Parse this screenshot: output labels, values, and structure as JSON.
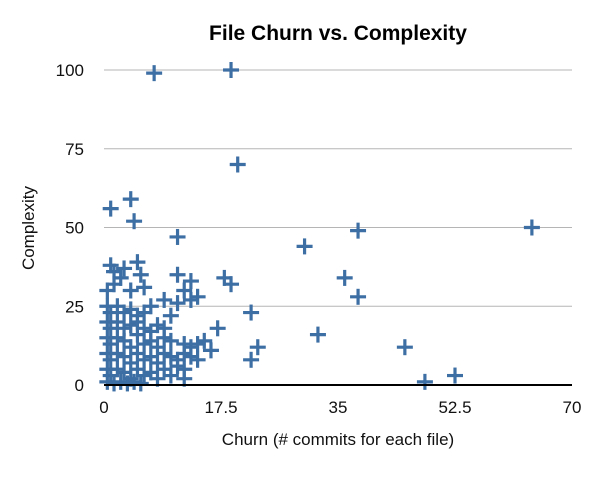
{
  "chart_data": {
    "type": "scatter",
    "title": "File Churn vs. Complexity",
    "xlabel": "Churn (# commits for each file)",
    "ylabel": "Complexity",
    "xlim": [
      0,
      70
    ],
    "ylim": [
      0,
      100
    ],
    "xticks": [
      "0",
      "17.5",
      "35",
      "52.5",
      "70"
    ],
    "yticks": [
      "0",
      "25",
      "50",
      "75",
      "100"
    ],
    "grid": "horizontal",
    "marker": "plus",
    "color": "#3d6ea4",
    "series": [
      {
        "points": [
          [
            7.5,
            99
          ],
          [
            19,
            100
          ],
          [
            20,
            70
          ],
          [
            4,
            59
          ],
          [
            1,
            56
          ],
          [
            4.5,
            52
          ],
          [
            11,
            47
          ],
          [
            30,
            44
          ],
          [
            38,
            49
          ],
          [
            64,
            50
          ],
          [
            36,
            34
          ],
          [
            38,
            28
          ],
          [
            18,
            34
          ],
          [
            19,
            32
          ],
          [
            1,
            38
          ],
          [
            1.5,
            36
          ],
          [
            3,
            37
          ],
          [
            5,
            39
          ],
          [
            5.5,
            35
          ],
          [
            0.5,
            30
          ],
          [
            1.5,
            32
          ],
          [
            2.5,
            34
          ],
          [
            4,
            30
          ],
          [
            6,
            31
          ],
          [
            11,
            35
          ],
          [
            13,
            33
          ],
          [
            12,
            30
          ],
          [
            14,
            28
          ],
          [
            13,
            27
          ],
          [
            11,
            26
          ],
          [
            9,
            27
          ],
          [
            7,
            25
          ],
          [
            0.5,
            25
          ],
          [
            1,
            23
          ],
          [
            2,
            25
          ],
          [
            3,
            23
          ],
          [
            4,
            24
          ],
          [
            5,
            22
          ],
          [
            6,
            23
          ],
          [
            0.5,
            20
          ],
          [
            1,
            18
          ],
          [
            2,
            20
          ],
          [
            3,
            18
          ],
          [
            4,
            19
          ],
          [
            5,
            20
          ],
          [
            6,
            18
          ],
          [
            7,
            17
          ],
          [
            8,
            19
          ],
          [
            9,
            18
          ],
          [
            10,
            22
          ],
          [
            0.5,
            15
          ],
          [
            1,
            13
          ],
          [
            2,
            15
          ],
          [
            3,
            14
          ],
          [
            4,
            12
          ],
          [
            5,
            16
          ],
          [
            6,
            13
          ],
          [
            7,
            14
          ],
          [
            8,
            12
          ],
          [
            9,
            15
          ],
          [
            10,
            14
          ],
          [
            12,
            13
          ],
          [
            13,
            12
          ],
          [
            14,
            13
          ],
          [
            15,
            14
          ],
          [
            17,
            18
          ],
          [
            22,
            23
          ],
          [
            0.5,
            10
          ],
          [
            1,
            8
          ],
          [
            2,
            10
          ],
          [
            3,
            9
          ],
          [
            4,
            7
          ],
          [
            5,
            10
          ],
          [
            6,
            8
          ],
          [
            7,
            9
          ],
          [
            8,
            7
          ],
          [
            9,
            10
          ],
          [
            10,
            9
          ],
          [
            11,
            8
          ],
          [
            12,
            10
          ],
          [
            13,
            9
          ],
          [
            14,
            8
          ],
          [
            16,
            11
          ],
          [
            23,
            12
          ],
          [
            22,
            8
          ],
          [
            0.5,
            5
          ],
          [
            1,
            3
          ],
          [
            2,
            5
          ],
          [
            3,
            4
          ],
          [
            4,
            2
          ],
          [
            5,
            5
          ],
          [
            6,
            3
          ],
          [
            7,
            4
          ],
          [
            8,
            2
          ],
          [
            9,
            5
          ],
          [
            10,
            3
          ],
          [
            11,
            6
          ],
          [
            12,
            5
          ],
          [
            12,
            2
          ],
          [
            0.5,
            1
          ],
          [
            1.5,
            0.5
          ],
          [
            2.5,
            1
          ],
          [
            3.5,
            0.5
          ],
          [
            4.5,
            1
          ],
          [
            5.5,
            0.5
          ],
          [
            32,
            16
          ],
          [
            45,
            12
          ],
          [
            48,
            1
          ],
          [
            52.5,
            3
          ]
        ]
      }
    ]
  }
}
